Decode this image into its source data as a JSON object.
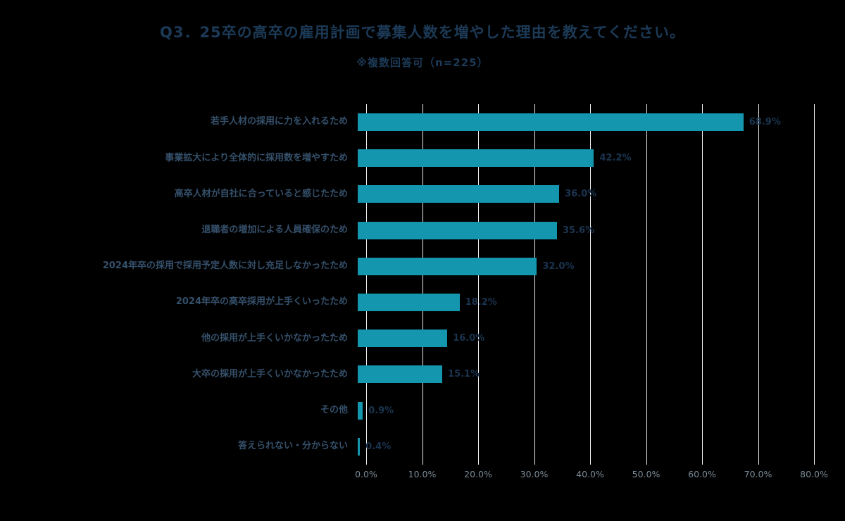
{
  "header": {
    "title": "Q3．25卒の高卒の雇用計画で募集人数を増やした理由を教えてください。",
    "subtitle": "※複数回答可（n=225）"
  },
  "chart_data": {
    "type": "bar",
    "orientation": "horizontal",
    "title": "Q3．25卒の高卒の雇用計画で募集人数を増やした理由を教えてください。",
    "subtitle": "※複数回答可（n=225）",
    "sample_size": "n=225",
    "categories": [
      "若手人材の採用に力を入れるため",
      "事業拡大により全体的に採用数を増やすため",
      "高卒人材が自社に合っていると感じたため",
      "退職者の増加による人員確保のため",
      "2024年卒の採用で採用予定人数に対し充足しなかったため",
      "2024年卒の高卒採用が上手くいったため",
      "他の採用が上手くいかなかったため",
      "大卒の採用が上手くいかなかったため",
      "その他",
      "答えられない・分からない"
    ],
    "values": [
      68.9,
      42.2,
      36.0,
      35.6,
      32.0,
      18.2,
      16.0,
      15.1,
      0.9,
      0.4
    ],
    "value_labels": [
      "68.9%",
      "42.2%",
      "36.0%",
      "35.6%",
      "32.0%",
      "18.2%",
      "16.0%",
      "15.1%",
      "0.9%",
      "0.4%"
    ],
    "x_ticks": [
      "0.0%",
      "10.0%",
      "20.0%",
      "30.0%",
      "40.0%",
      "50.0%",
      "60.0%",
      "70.0%",
      "80.0%"
    ],
    "xlim": [
      0,
      80
    ],
    "xlabel": "",
    "ylabel": "",
    "grid": true,
    "legend": "none",
    "colors": {
      "bar": "#1396ae",
      "gridline": "#eeeeee",
      "tick_label": "#7a8a96",
      "category_label": "#35506b",
      "value_label": "#1b3450",
      "title_text": "#1c3a57",
      "background": "#000000"
    }
  }
}
